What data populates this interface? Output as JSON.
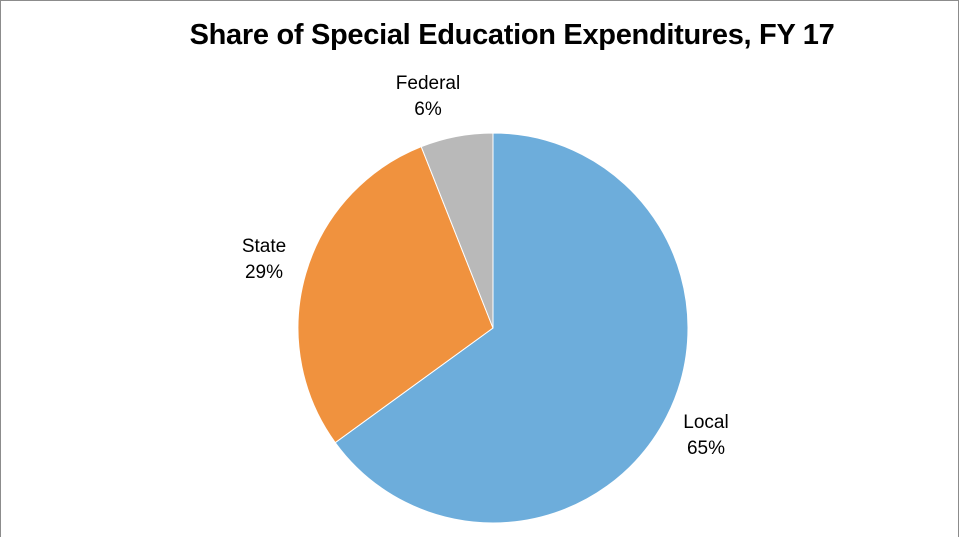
{
  "chart_data": {
    "type": "pie",
    "title": "Share of Special Education Expenditures, FY 17",
    "slices": [
      {
        "name": "Local",
        "value": 65,
        "label": "65%",
        "color": "#6daddb"
      },
      {
        "name": "State",
        "value": 29,
        "label": "29%",
        "color": "#f0923e"
      },
      {
        "name": "Federal",
        "value": 6,
        "label": "6%",
        "color": "#b9b9b9"
      }
    ],
    "start": "12 o'clock",
    "direction": "clockwise",
    "legend": "none",
    "data_labels": "category name and percentage, outside"
  }
}
